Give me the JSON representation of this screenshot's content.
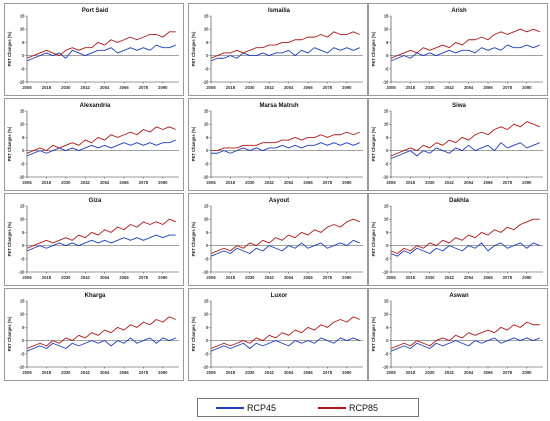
{
  "chart_data": {
    "type": "line",
    "ylabel": "PET Changes (%)",
    "yticks": [
      -10,
      -5,
      0,
      5,
      10,
      15
    ],
    "ylim": [
      -10,
      15
    ],
    "xlim": [
      2006,
      2100
    ],
    "xticks": [
      2006,
      2018,
      2030,
      2042,
      2054,
      2066,
      2078,
      2090
    ],
    "grid": false,
    "legend_position": "bottom-center",
    "series_colors": {
      "RCP45": "#1f3fbf",
      "RCP85": "#b01818"
    },
    "series_names": [
      "RCP45",
      "RCP85"
    ],
    "series_step_years": 4,
    "panels": [
      {
        "title": "Port Said",
        "series": [
          {
            "name": "RCP45",
            "values": [
              -2,
              -1,
              0,
              1,
              0,
              1,
              -1,
              2,
              1,
              0,
              1,
              2,
              2,
              3,
              1,
              2,
              3,
              2,
              3,
              2,
              4,
              3,
              3,
              4
            ]
          },
          {
            "name": "RCP85",
            "values": [
              -1,
              0,
              1,
              2,
              1,
              0,
              2,
              3,
              2,
              3,
              3,
              5,
              4,
              6,
              5,
              6,
              7,
              6,
              7,
              8,
              8,
              7,
              9,
              9
            ]
          }
        ]
      },
      {
        "title": "Ismailia",
        "series": [
          {
            "name": "RCP45",
            "values": [
              -2,
              -1,
              -1,
              0,
              -1,
              1,
              0,
              0,
              1,
              0,
              1,
              1,
              2,
              0,
              2,
              1,
              3,
              2,
              1,
              3,
              2,
              3,
              2,
              3
            ]
          },
          {
            "name": "RCP85",
            "values": [
              -1,
              0,
              1,
              1,
              2,
              1,
              2,
              3,
              3,
              4,
              4,
              5,
              5,
              6,
              6,
              7,
              7,
              8,
              7,
              9,
              8,
              8,
              9,
              8
            ]
          }
        ]
      },
      {
        "title": "Arish",
        "series": [
          {
            "name": "RCP45",
            "values": [
              -2,
              -1,
              0,
              -1,
              1,
              0,
              1,
              0,
              1,
              2,
              1,
              2,
              2,
              1,
              3,
              2,
              3,
              2,
              4,
              3,
              3,
              4,
              3,
              4
            ]
          },
          {
            "name": "RCP85",
            "values": [
              -1,
              0,
              1,
              2,
              1,
              3,
              2,
              3,
              4,
              3,
              5,
              4,
              6,
              6,
              7,
              6,
              8,
              9,
              8,
              9,
              10,
              9,
              10,
              9
            ]
          }
        ]
      },
      {
        "title": "Alexandria",
        "series": [
          {
            "name": "RCP45",
            "values": [
              -2,
              -1,
              0,
              -1,
              0,
              1,
              0,
              1,
              0,
              1,
              2,
              1,
              2,
              1,
              2,
              3,
              2,
              3,
              2,
              3,
              2,
              3,
              3,
              4
            ]
          },
          {
            "name": "RCP85",
            "values": [
              -1,
              0,
              1,
              0,
              2,
              1,
              2,
              3,
              2,
              4,
              3,
              5,
              4,
              6,
              5,
              6,
              7,
              6,
              8,
              7,
              9,
              8,
              9,
              8
            ]
          }
        ]
      },
      {
        "title": "Marsa Matruh",
        "series": [
          {
            "name": "RCP45",
            "values": [
              -1,
              -1,
              0,
              -1,
              0,
              1,
              0,
              1,
              0,
              1,
              1,
              2,
              1,
              2,
              1,
              2,
              2,
              3,
              2,
              3,
              2,
              3,
              2,
              3
            ]
          },
          {
            "name": "RCP85",
            "values": [
              0,
              0,
              1,
              1,
              1,
              2,
              2,
              2,
              3,
              3,
              3,
              4,
              4,
              5,
              4,
              5,
              5,
              6,
              5,
              6,
              6,
              7,
              6,
              7
            ]
          }
        ]
      },
      {
        "title": "Siwa",
        "series": [
          {
            "name": "RCP45",
            "values": [
              -3,
              -2,
              -1,
              0,
              -2,
              0,
              -1,
              1,
              0,
              -1,
              1,
              0,
              2,
              0,
              1,
              2,
              0,
              3,
              1,
              2,
              3,
              1,
              2,
              3
            ]
          },
          {
            "name": "RCP85",
            "values": [
              -2,
              -1,
              0,
              1,
              0,
              2,
              1,
              3,
              2,
              4,
              3,
              5,
              4,
              6,
              7,
              6,
              8,
              9,
              8,
              10,
              9,
              11,
              10,
              9
            ]
          }
        ]
      },
      {
        "title": "Giza",
        "series": [
          {
            "name": "RCP45",
            "values": [
              -2,
              -1,
              0,
              -1,
              0,
              1,
              0,
              1,
              0,
              1,
              2,
              1,
              2,
              1,
              2,
              3,
              2,
              3,
              2,
              3,
              4,
              3,
              4,
              4
            ]
          },
          {
            "name": "RCP85",
            "values": [
              -1,
              0,
              1,
              2,
              1,
              2,
              3,
              2,
              4,
              3,
              5,
              4,
              6,
              5,
              7,
              6,
              8,
              7,
              9,
              8,
              9,
              8,
              10,
              9
            ]
          }
        ]
      },
      {
        "title": "Asyout",
        "series": [
          {
            "name": "RCP45",
            "values": [
              -4,
              -3,
              -2,
              -3,
              -1,
              -2,
              -3,
              -1,
              -2,
              0,
              -1,
              -2,
              0,
              -1,
              1,
              -1,
              0,
              1,
              -1,
              0,
              1,
              0,
              2,
              1
            ]
          },
          {
            "name": "RCP85",
            "values": [
              -3,
              -2,
              -1,
              -2,
              0,
              -1,
              1,
              0,
              2,
              1,
              3,
              2,
              4,
              3,
              5,
              4,
              6,
              5,
              7,
              8,
              7,
              9,
              10,
              9
            ]
          }
        ]
      },
      {
        "title": "Dakhla",
        "series": [
          {
            "name": "RCP45",
            "values": [
              -3,
              -4,
              -2,
              -3,
              -1,
              -2,
              -3,
              -1,
              -2,
              0,
              -1,
              -2,
              0,
              -1,
              1,
              -2,
              0,
              1,
              -1,
              0,
              1,
              -1,
              1,
              0
            ]
          },
          {
            "name": "RCP85",
            "values": [
              -2,
              -3,
              -1,
              -2,
              0,
              -1,
              1,
              0,
              2,
              1,
              3,
              2,
              4,
              3,
              5,
              4,
              6,
              5,
              7,
              6,
              8,
              9,
              10,
              10
            ]
          }
        ]
      },
      {
        "title": "Kharga",
        "series": [
          {
            "name": "RCP45",
            "values": [
              -4,
              -3,
              -2,
              -3,
              -1,
              -2,
              -3,
              -1,
              -2,
              -1,
              0,
              -1,
              0,
              -2,
              0,
              -1,
              1,
              -1,
              0,
              1,
              -1,
              1,
              0,
              1
            ]
          },
          {
            "name": "RCP85",
            "values": [
              -3,
              -2,
              -1,
              -2,
              0,
              -1,
              1,
              0,
              2,
              1,
              3,
              2,
              4,
              3,
              5,
              4,
              6,
              5,
              7,
              6,
              8,
              7,
              9,
              8
            ]
          }
        ]
      },
      {
        "title": "Luxor",
        "series": [
          {
            "name": "RCP45",
            "values": [
              -4,
              -3,
              -2,
              -3,
              -2,
              -1,
              -3,
              -1,
              -2,
              -1,
              0,
              -1,
              -2,
              0,
              -1,
              0,
              -1,
              1,
              0,
              -1,
              1,
              0,
              1,
              0
            ]
          },
          {
            "name": "RCP85",
            "values": [
              -3,
              -2,
              -1,
              -2,
              -1,
              0,
              -1,
              1,
              0,
              2,
              1,
              3,
              2,
              4,
              3,
              5,
              4,
              6,
              5,
              7,
              8,
              7,
              9,
              8
            ]
          }
        ]
      },
      {
        "title": "Aswan",
        "series": [
          {
            "name": "RCP45",
            "values": [
              -4,
              -3,
              -2,
              -3,
              -1,
              -2,
              -3,
              -1,
              -2,
              -1,
              0,
              -1,
              -2,
              0,
              -1,
              0,
              1,
              -1,
              0,
              1,
              0,
              1,
              0,
              1
            ]
          },
          {
            "name": "RCP85",
            "values": [
              -3,
              -2,
              -1,
              -2,
              0,
              -1,
              -2,
              0,
              1,
              0,
              2,
              1,
              3,
              2,
              3,
              4,
              3,
              5,
              4,
              6,
              5,
              7,
              6,
              6
            ]
          }
        ]
      }
    ]
  },
  "legend": {
    "items": [
      "RCP45",
      "RCP85"
    ]
  }
}
